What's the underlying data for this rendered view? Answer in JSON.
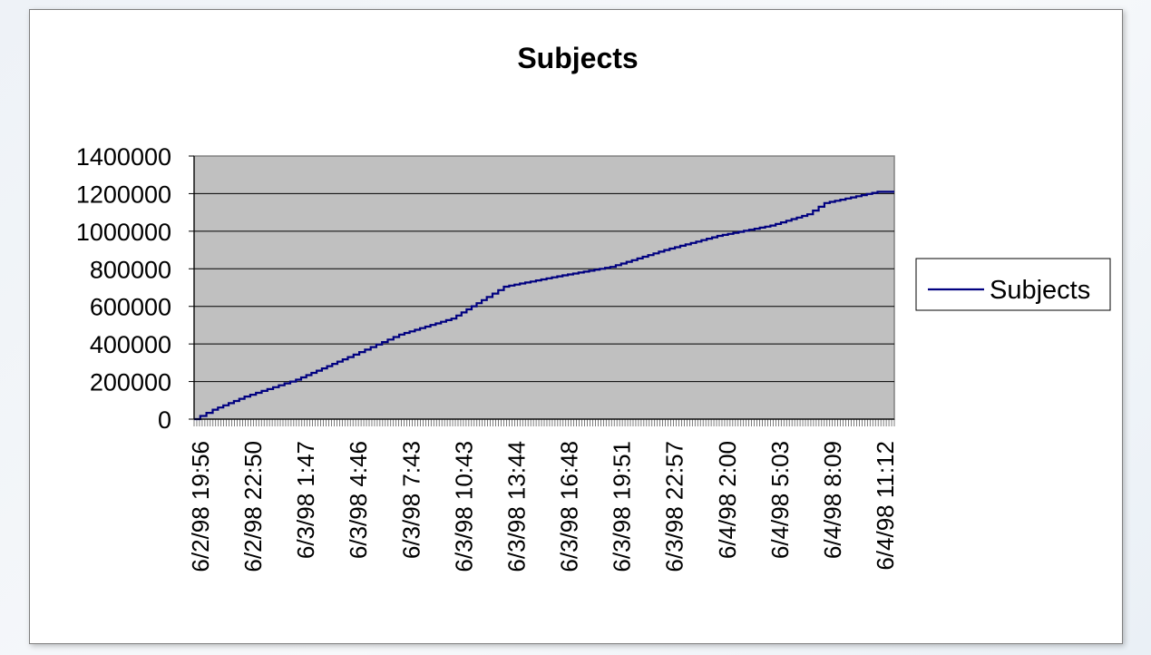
{
  "chart_data": {
    "type": "line",
    "title": "Subjects",
    "xlabel": "",
    "ylabel": "",
    "ylim": [
      0,
      1400000
    ],
    "yticks": [
      0,
      200000,
      400000,
      600000,
      800000,
      1000000,
      1200000,
      1400000
    ],
    "grid": true,
    "legend": "right",
    "plot_background": "#c0c0c0",
    "x_tick_labels": [
      "6/2/98 19:56",
      "6/2/98 22:50",
      "6/3/98 1:47",
      "6/3/98 4:46",
      "6/3/98 7:43",
      "6/3/98 10:43",
      "6/3/98 13:44",
      "6/3/98 16:48",
      "6/3/98 19:51",
      "6/3/98 22:57",
      "6/4/98 2:00",
      "6/4/98 5:03",
      "6/4/98 8:09",
      "6/4/98 11:12"
    ],
    "series": [
      {
        "name": "Subjects",
        "color": "#000080",
        "points": [
          [
            "6/2/98 19:56",
            0
          ],
          [
            "6/2/98 21:00",
            50000
          ],
          [
            "6/2/98 22:50",
            120000
          ],
          [
            "6/3/98 1:47",
            210000
          ],
          [
            "6/3/98 4:46",
            330000
          ],
          [
            "6/3/98 7:43",
            450000
          ],
          [
            "6/3/98 10:43",
            535000
          ],
          [
            "6/3/98 12:45",
            650000
          ],
          [
            "6/3/98 13:44",
            705000
          ],
          [
            "6/3/98 16:48",
            760000
          ],
          [
            "6/3/98 19:51",
            810000
          ],
          [
            "6/3/98 22:57",
            900000
          ],
          [
            "6/4/98 2:00",
            975000
          ],
          [
            "6/4/98 5:03",
            1030000
          ],
          [
            "6/4/98 7:10",
            1090000
          ],
          [
            "6/4/98 8:09",
            1150000
          ],
          [
            "6/4/98 11:12",
            1210000
          ],
          [
            "6/4/98 12:10",
            1210000
          ]
        ]
      }
    ]
  }
}
